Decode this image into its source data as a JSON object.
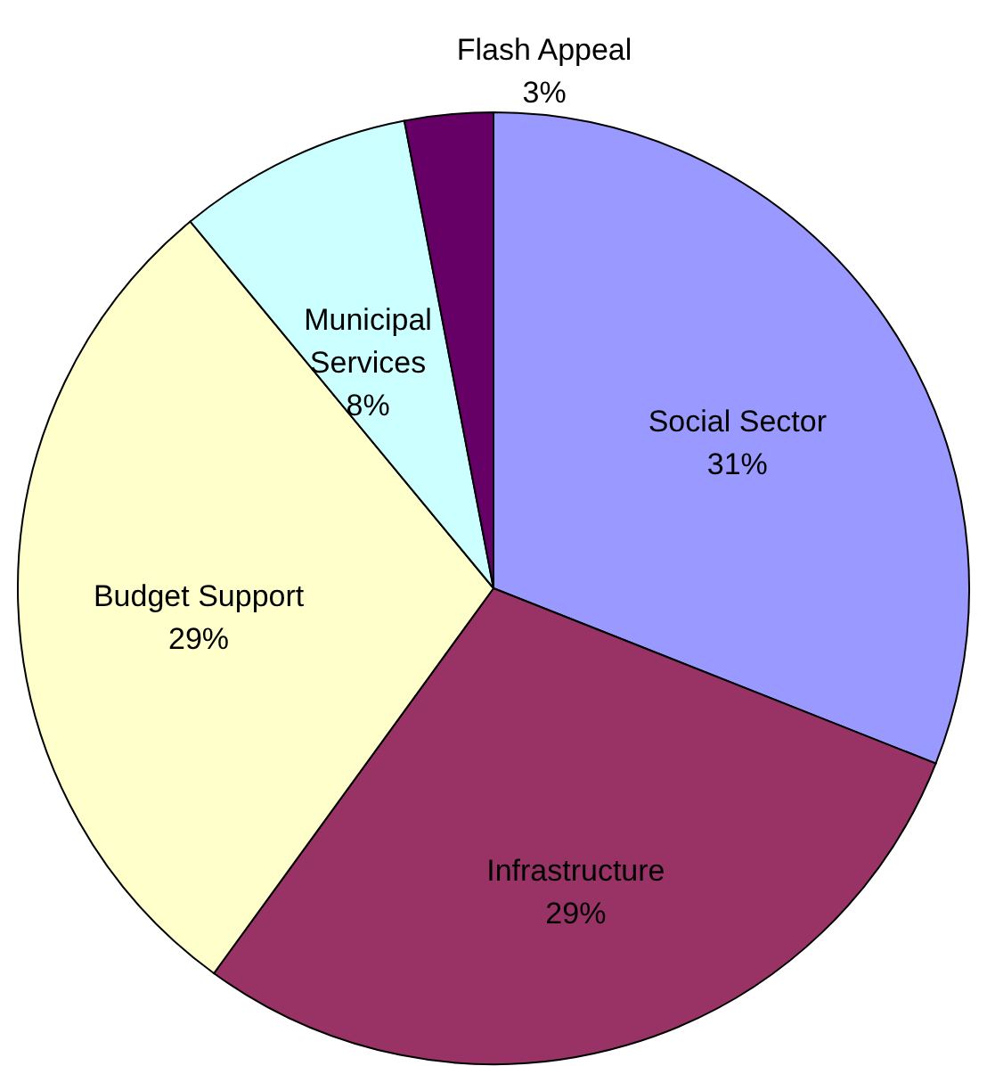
{
  "chart_data": {
    "type": "pie",
    "categories": [
      "Social Sector",
      "Infrastructure",
      "Budget Support",
      "Municipal Services",
      "Flash Appeal"
    ],
    "values": [
      31,
      29,
      29,
      8,
      3
    ],
    "value_labels": [
      "31%",
      "29%",
      "29%",
      "8%",
      "3%"
    ],
    "colors": [
      "#9999ff",
      "#993366",
      "#ffffcc",
      "#ccffff",
      "#660066"
    ]
  }
}
